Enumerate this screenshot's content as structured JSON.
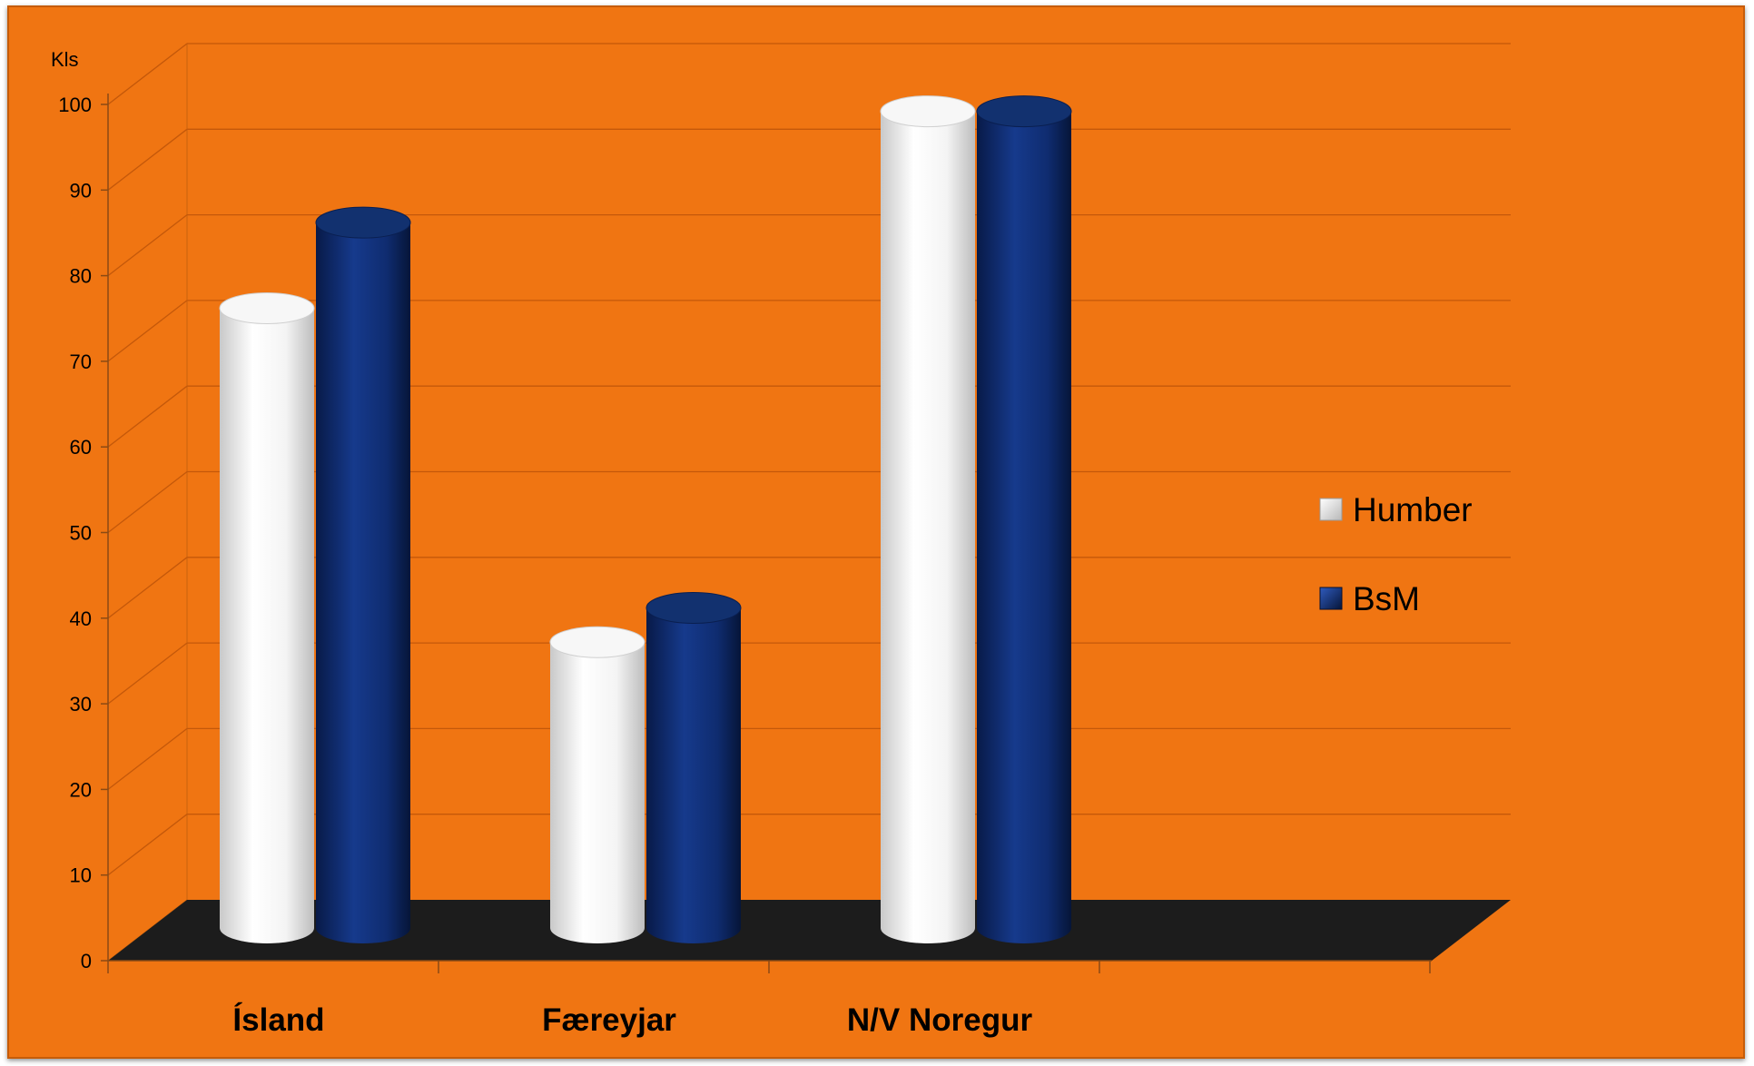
{
  "chart_data": {
    "type": "bar",
    "style": "3d-cylinder",
    "background_color": "#f07512",
    "floor_color": "#1c1c1c",
    "ylabel": "Kls",
    "ylim": [
      0,
      100
    ],
    "yticks": [
      0,
      10,
      20,
      30,
      40,
      50,
      60,
      70,
      80,
      90,
      100
    ],
    "grid": true,
    "legend_position": "right",
    "categories": [
      "Ísland",
      "Færeyjar",
      "N/V Noregur"
    ],
    "series": [
      {
        "name": "Humber",
        "color": "#f2f2f2",
        "values": [
          73,
          34,
          96
        ]
      },
      {
        "name": "BsM",
        "color": "#0d2a6e",
        "values": [
          83,
          38,
          96
        ]
      }
    ]
  }
}
